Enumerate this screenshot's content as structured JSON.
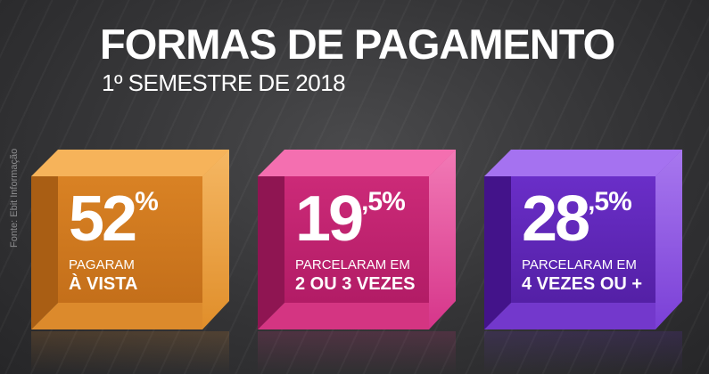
{
  "header": {
    "title": "FORMAS DE PAGAMENTO",
    "subtitle": "1º SEMESTRE DE 2018"
  },
  "source": "Fonte: Ebit Informação",
  "cards": [
    {
      "value_int": "52",
      "value_dec": "",
      "percent": "%",
      "line1": "PAGARAM",
      "line2": "À VISTA",
      "color": "#e08a2c"
    },
    {
      "value_int": "19",
      "value_dec": ",5",
      "percent": "%",
      "line1": "PARCELARAM EM",
      "line2": "2 OU 3 VEZES",
      "color": "#d3307f"
    },
    {
      "value_int": "28",
      "value_dec": ",5",
      "percent": "%",
      "line1": "PARCELARAM EM",
      "line2": "4 VEZES OU +",
      "color": "#6a30c8"
    }
  ]
}
